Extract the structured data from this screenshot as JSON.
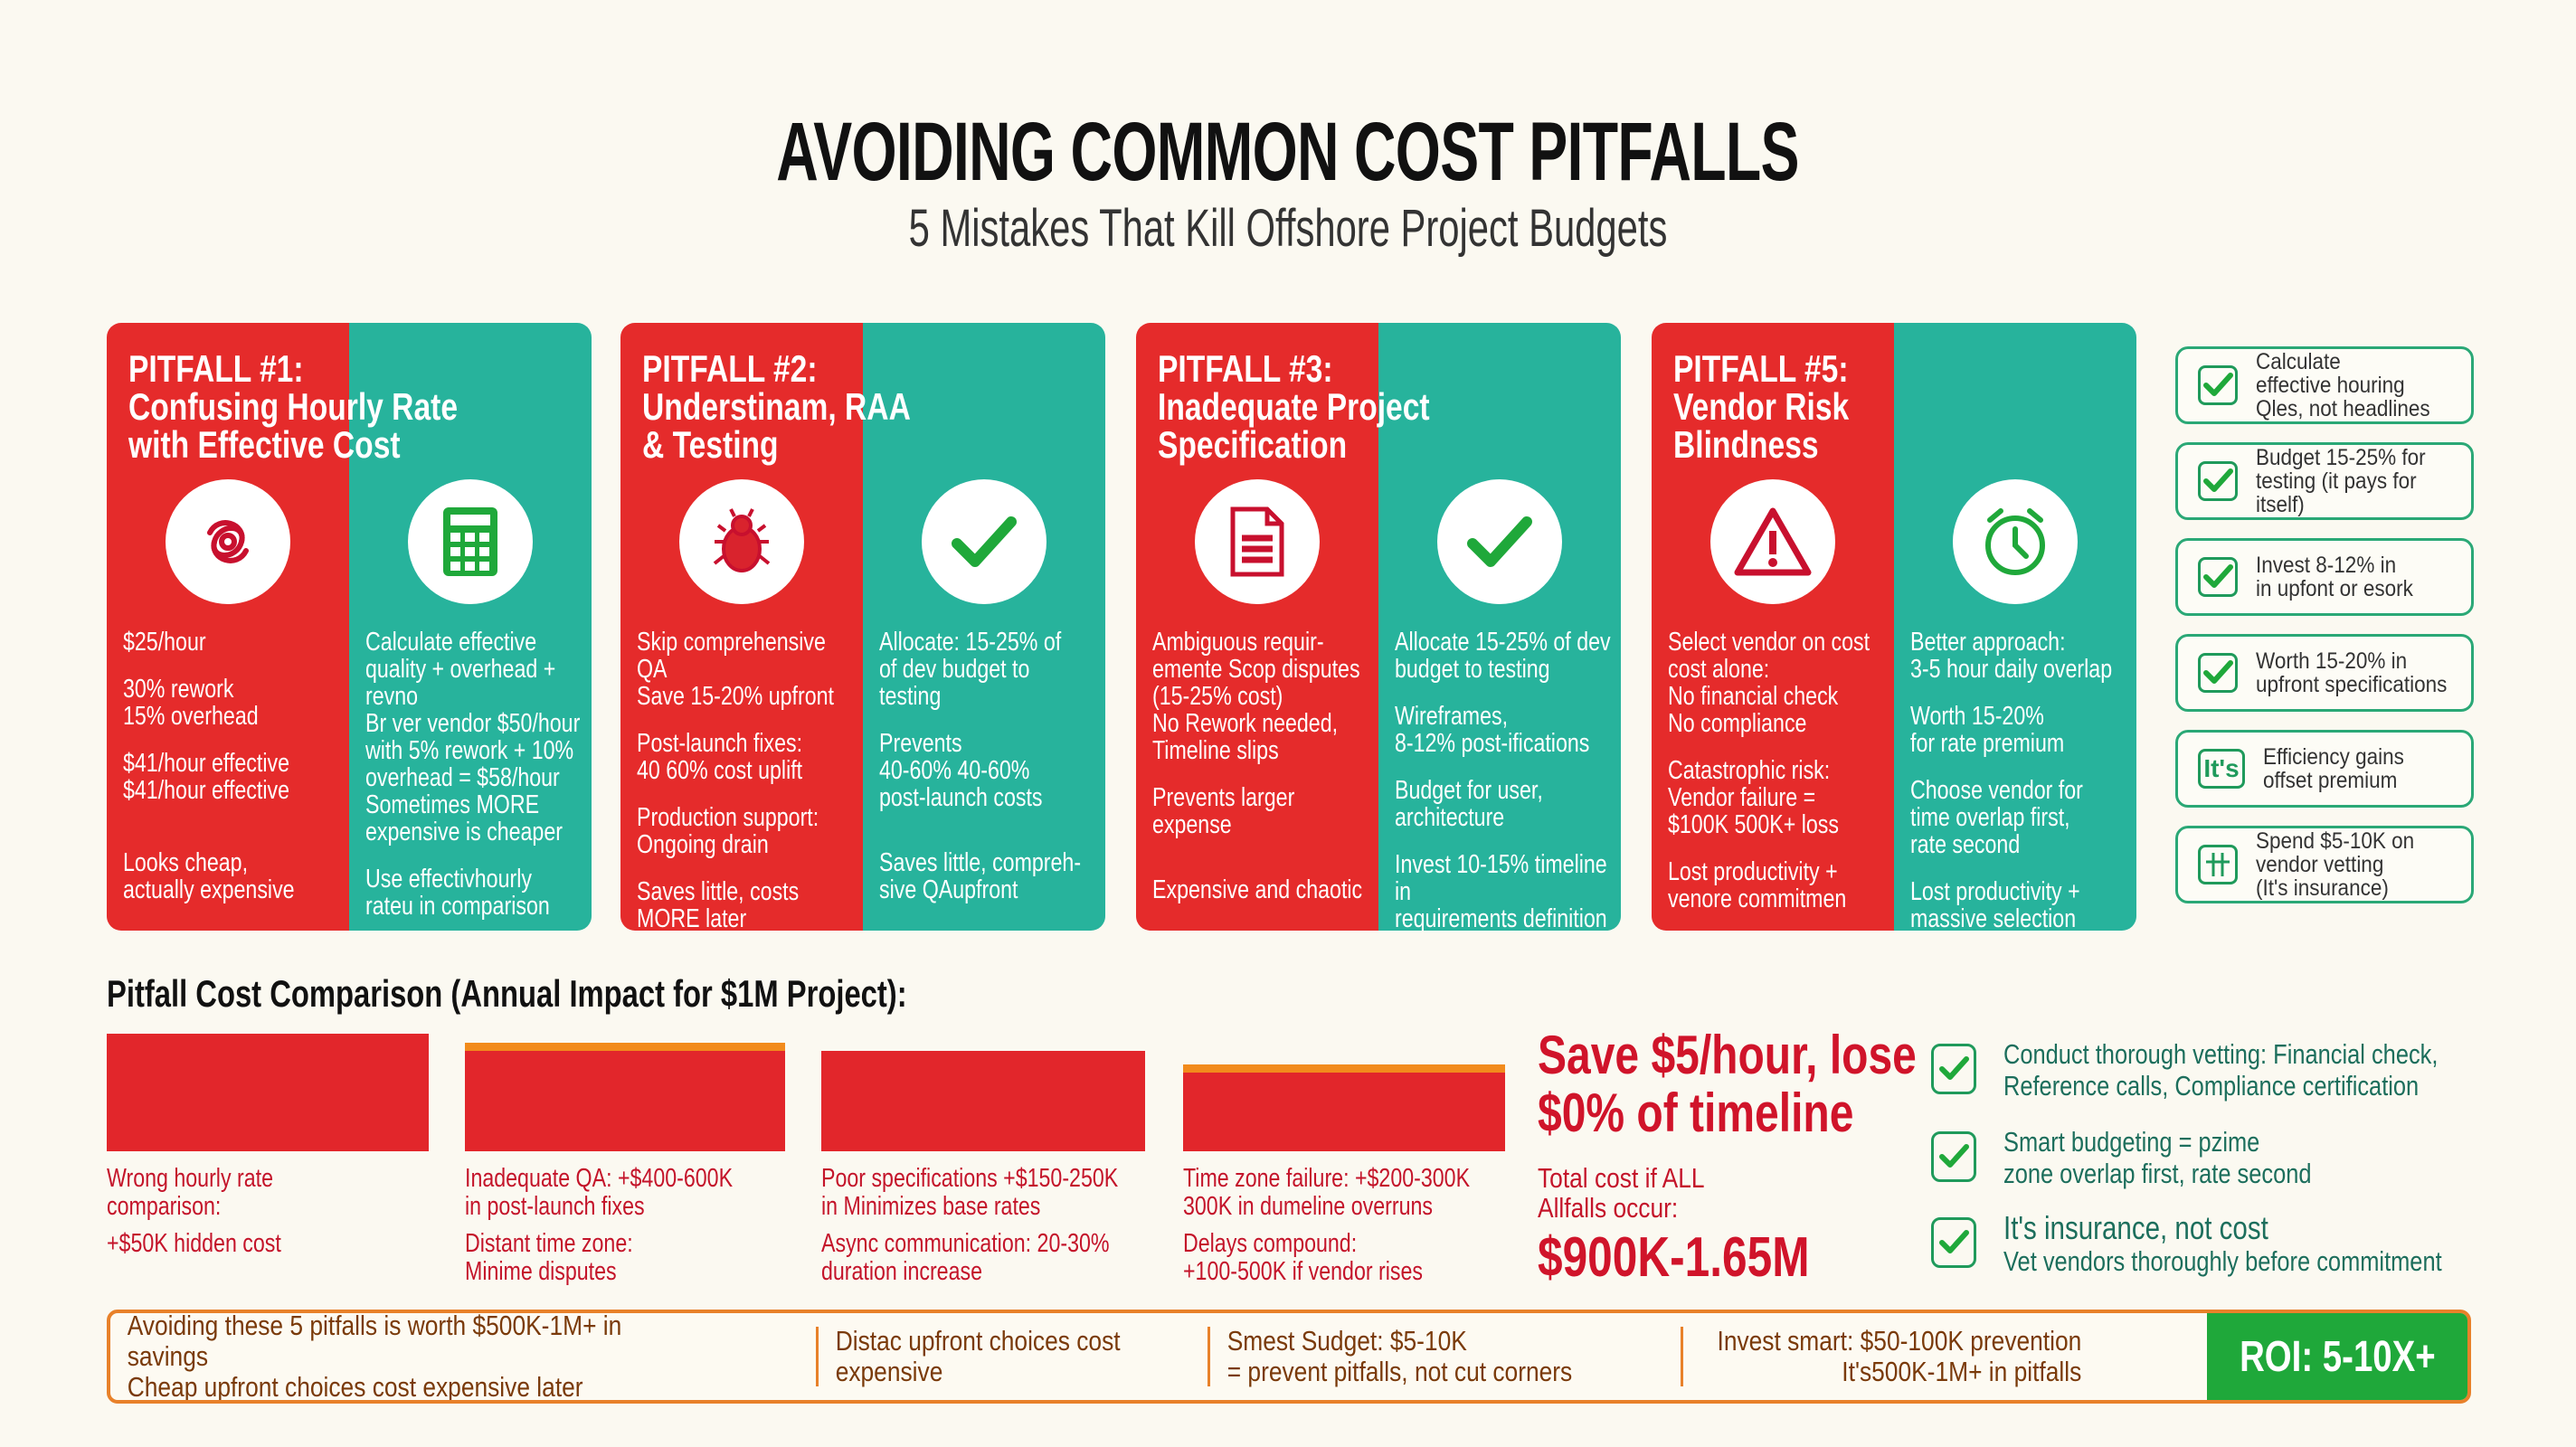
{
  "header": {
    "title": "AVOIDING COMMON COST PITFALLS",
    "subtitle": "5 Mistakes That Kill Offshore Project Budgets"
  },
  "colors": {
    "red": "#e52b2b",
    "teal": "#27b39c",
    "green": "#1fa83a",
    "orange": "#e8812a"
  },
  "cards": [
    {
      "title": "PITFALL #1:\nConfusing Hourly Rate\nwith Effective Cost",
      "left_icon": "tangle-icon",
      "right_icon": "calculator-icon",
      "left": [
        "$25/hour",
        "30% rework\n15% overhead",
        "$41/hour effective\n$41/hour effective",
        "Looks cheap,\nactually expensive"
      ],
      "right": [
        "Calculate effective\nquality + overhead +\nrevno\nBr ver vendor $50/hour\nwith 5% rework + 10%\noverhead = $58/hour\nSometimes MORE\nexpensive is cheaper",
        "Use effectivhourly\nrateu in comparison"
      ]
    },
    {
      "title": "PITFALL #2:\nUnderstinam, RAA\n& Testing",
      "left_icon": "bug-icon",
      "right_icon": "checkmark-icon",
      "left": [
        "Skip comprehensive QA\nSave 15-20% upfront",
        "Post-launch fixes:\n40 60% cost uplift",
        "Production support:\nOngoing drain",
        "Saves little, costs\nMORE later"
      ],
      "right": [
        "Allocate: 15-25% of\nof dev budget to\ntesting",
        "Prevents\n40-60% 40-60%\npost-launch costs",
        "Saves little, compreh-\nsive QAupfront"
      ]
    },
    {
      "title": "PITFALL #3:\nInadequate Project\nSpecification",
      "left_icon": "document-icon",
      "right_icon": "checkmark-icon",
      "left": [
        "Ambiguous requir-\nemente Scop disputes\n(15-25% cost)\nNo Rework needed,\nTimeline slips",
        "Prevents larger\nexpense",
        "Expensive and chaotic"
      ],
      "right": [
        "Allocate 15-25% of dev\nbudget to testing",
        "Wireframes,\n8-12% post-ifications",
        "Budget for user,\narchitecture",
        "Invest 10-15% timeline in\nrequirements definition"
      ]
    },
    {
      "title": "PITFALL #5:\nVendor Risk\nBlindness",
      "left_icon": "warning-icon",
      "right_icon": "alarm-clock-icon",
      "left": [
        "Select vendor on cost\ncost alone:\nNo financial check\nNo compliance",
        "Catastrophic risk:\nVendor failure =\n$100K 500K+ loss",
        "Lost productivity +\nvenore commitmen"
      ],
      "right": [
        "Better approach:\n3-5 hour daily overlap",
        "Worth 15-20%\nfor rate premium",
        "Choose vendor for\ntime overlap first,\nrate second",
        "Lost productivity +\nmassive selection"
      ]
    }
  ],
  "checklist": [
    {
      "icon": "checkbox-icon",
      "text": "Calculate\neffective houring\nQles, not headlines"
    },
    {
      "icon": "checkbox-icon",
      "text": "Budget 15-25% for\ntesting (it pays for itself)"
    },
    {
      "icon": "checkbox-icon",
      "text": "Invest 8-12% in\nin upfont or esork"
    },
    {
      "icon": "checkbox-icon",
      "text": "Worth 15-20% in\nupfront specifications"
    },
    {
      "icon": "its-badge-icon",
      "badge": "It's",
      "text": "Efficiency gains\noffset premium"
    },
    {
      "icon": "grid-icon",
      "text": "Spend $5-10K on\nvendor vetting\n(It's insurance)"
    }
  ],
  "comparison": {
    "heading": "Pitfall Cost Comparison (Annual Impact for $1M Project):",
    "items": [
      {
        "lines": [
          "Wrong hourly rate\ncomparison:",
          "+$50K hidden cost"
        ]
      },
      {
        "lines": [
          "Inadequate QA: +$400-600K\nin post-launch fixes",
          "Distant time zone:\nMinime disputes"
        ]
      },
      {
        "lines": [
          "Poor specifications +$150-250K\nin Minimizes base rates",
          "Async communication: 20-30%\nduration increase"
        ]
      },
      {
        "lines": [
          "Time zone failure: +$200-300K\n300K in dumeline overruns",
          "Delays compound:\n+100-500K if vendor rises"
        ]
      }
    ],
    "save": "Save $5/hour, lose\n$0% of timeline",
    "total_label": "Total cost if ALL\nAllfalls occur:",
    "total_value": "$900K-1.65M"
  },
  "tips": [
    {
      "text": "Conduct thorough vetting: Financial check,\nReference calls, Compliance certification"
    },
    {
      "text": "Smart budgeting = pzime\nzone overlap first, rate second"
    },
    {
      "head": "It's insurance, not cost",
      "text": "Vet vendors thoroughly before commitment"
    }
  ],
  "banner": {
    "segments": [
      "Avoiding these 5 pitfalls is worth $500K-1M+ in savings\nCheap upfront choices cost expensive later",
      "Distac upfront choices cost\nexpensive",
      "Smest Sudget: $5-10K\n= prevent pitfalls, not cut corners",
      "Invest smart: $50-100K prevention\nIt's500K-1M+ in pitfalls"
    ],
    "roi": "ROI: 5-10X+"
  }
}
